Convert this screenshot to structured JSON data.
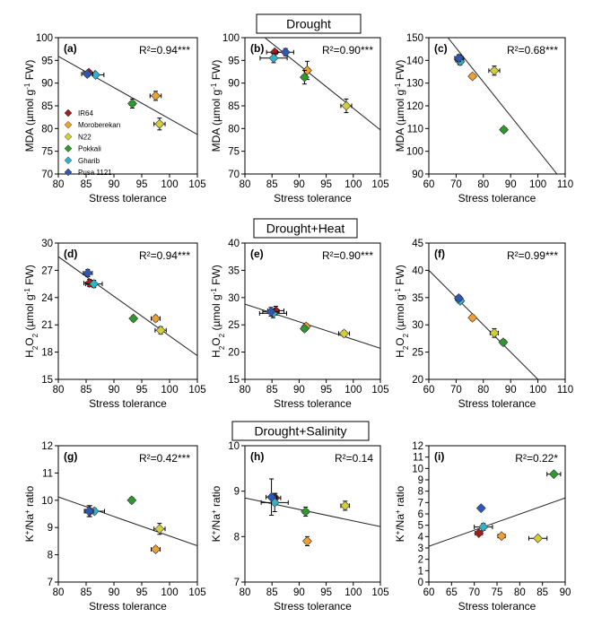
{
  "sections": [
    "Drought",
    "Drought+Heat",
    "Drought+Salinity"
  ],
  "legend": [
    {
      "label": "IR64",
      "color": "#a51c1c"
    },
    {
      "label": "Moroberekan",
      "color": "#f0a030"
    },
    {
      "label": "N22",
      "color": "#d2cf3a"
    },
    {
      "label": "Pokkali",
      "color": "#2e9a2e"
    },
    {
      "label": "Gharib",
      "color": "#33b1c9"
    },
    {
      "label": "Pusa 1121",
      "color": "#2f57b8"
    }
  ],
  "chart_data": [
    {
      "type": "scatter",
      "panel": "(a)",
      "xlabel": "Stress tolerance",
      "ylabel": "MDA (µmol g⁻¹ FW)",
      "r2_text": "R²=0.94***",
      "xlim": [
        80,
        105
      ],
      "xticks": [
        80,
        85,
        90,
        95,
        100,
        105
      ],
      "ylim": [
        70,
        100
      ],
      "yticks": [
        70,
        75,
        80,
        85,
        90,
        95,
        100
      ],
      "points": [
        {
          "name": "IR64",
          "x": 85.5,
          "y": 92.3,
          "xerr": 1.0,
          "yerr": 0.5
        },
        {
          "name": "Moroberekan",
          "x": 97.5,
          "y": 87.2,
          "xerr": 1.0,
          "yerr": 1.0
        },
        {
          "name": "N22",
          "x": 98.2,
          "y": 81.0,
          "xerr": 1.0,
          "yerr": 1.3
        },
        {
          "name": "Pokkali",
          "x": 93.3,
          "y": 85.5,
          "xerr": 0.5,
          "yerr": 1.0
        },
        {
          "name": "Gharib",
          "x": 86.7,
          "y": 91.8,
          "xerr": 1.5,
          "yerr": 0.5
        },
        {
          "name": "Pusa 1121",
          "x": 85.2,
          "y": 92.0,
          "xerr": 1.0,
          "yerr": 0.5
        }
      ],
      "fit": [
        [
          80,
          95.9
        ],
        [
          105,
          78.7
        ]
      ]
    },
    {
      "type": "scatter",
      "panel": "(d)",
      "xlabel": "Stress tolerance",
      "ylabel": "H₂O₂ (µmol g⁻¹ FW)",
      "r2_text": "R²=0.94***",
      "xlim": [
        80,
        105
      ],
      "xticks": [
        80,
        85,
        90,
        95,
        100,
        105
      ],
      "ylim": [
        15,
        30
      ],
      "yticks": [
        15,
        18,
        21,
        24,
        27,
        30
      ],
      "points": [
        {
          "name": "IR64",
          "x": 85.6,
          "y": 25.6,
          "xerr": 1.0,
          "yerr": 0.4
        },
        {
          "name": "Moroberekan",
          "x": 97.5,
          "y": 21.7,
          "xerr": 0.8,
          "yerr": 0.3
        },
        {
          "name": "N22",
          "x": 98.4,
          "y": 20.4,
          "xerr": 1.0,
          "yerr": 0.4
        },
        {
          "name": "Pokkali",
          "x": 93.5,
          "y": 21.7,
          "xerr": 0.3,
          "yerr": 0.3
        },
        {
          "name": "Gharib",
          "x": 86.4,
          "y": 25.5,
          "xerr": 1.5,
          "yerr": 0.4
        },
        {
          "name": "Pusa 1121",
          "x": 85.3,
          "y": 26.7,
          "xerr": 0.8,
          "yerr": 0.4
        }
      ],
      "fit": [
        [
          80,
          28.5
        ],
        [
          105,
          17.6
        ]
      ]
    },
    {
      "type": "scatter",
      "panel": "(g)",
      "xlabel": "Stress tolerance",
      "ylabel": "K⁺/Na⁺ ratio",
      "r2_text": "R²=0.42***",
      "xlim": [
        80,
        105
      ],
      "xticks": [
        80,
        85,
        90,
        95,
        100,
        105
      ],
      "ylim": [
        7,
        12
      ],
      "yticks": [
        7,
        8,
        9,
        10,
        11,
        12
      ],
      "points": [
        {
          "name": "IR64",
          "x": 85.7,
          "y": 9.6,
          "xerr": 0.8,
          "yerr": 0.2
        },
        {
          "name": "Moroberekan",
          "x": 97.5,
          "y": 8.2,
          "xerr": 0.8,
          "yerr": 0.1
        },
        {
          "name": "N22",
          "x": 98.2,
          "y": 8.95,
          "xerr": 1.0,
          "yerr": 0.2
        },
        {
          "name": "Pokkali",
          "x": 93.2,
          "y": 10.0,
          "xerr": 0.3,
          "yerr": 0.1
        },
        {
          "name": "Gharib",
          "x": 86.5,
          "y": 9.6,
          "xerr": 1.8,
          "yerr": 0.1
        },
        {
          "name": "Pusa 1121",
          "x": 85.5,
          "y": 9.6,
          "xerr": 0.8,
          "yerr": 0.2
        }
      ],
      "fit": [
        [
          80,
          10.12
        ],
        [
          105,
          8.33
        ]
      ]
    },
    {
      "type": "scatter",
      "panel": "(b)",
      "xlabel": "Stress tolerance",
      "ylabel": "MDA (µmol g⁻¹ FW)",
      "r2_text": "R²=0.90***",
      "xlim": [
        80,
        105
      ],
      "xticks": [
        80,
        85,
        90,
        95,
        100,
        105
      ],
      "ylim": [
        70,
        100
      ],
      "yticks": [
        70,
        75,
        80,
        85,
        90,
        95,
        100
      ],
      "points": [
        {
          "name": "IR64",
          "x": 85.5,
          "y": 96.8,
          "xerr": 1.5,
          "yerr": 0.5
        },
        {
          "name": "Moroberekan",
          "x": 91.5,
          "y": 92.8,
          "xerr": 0.5,
          "yerr": 2.0
        },
        {
          "name": "N22",
          "x": 98.7,
          "y": 85.0,
          "xerr": 1.0,
          "yerr": 1.5
        },
        {
          "name": "Pokkali",
          "x": 91.0,
          "y": 91.3,
          "xerr": 0.5,
          "yerr": 1.5
        },
        {
          "name": "Gharib",
          "x": 85.3,
          "y": 95.5,
          "xerr": 2.5,
          "yerr": 1.0
        },
        {
          "name": "Pusa 1121",
          "x": 87.5,
          "y": 96.8,
          "xerr": 1.5,
          "yerr": 0.8
        }
      ],
      "fit": [
        [
          80,
          103.5
        ],
        [
          105,
          79.7
        ]
      ]
    },
    {
      "type": "scatter",
      "panel": "(e)",
      "xlabel": "Stress tolerance",
      "ylabel": "H₂O₂ (µmol g⁻¹ FW)",
      "r2_text": "R²=0.90***",
      "xlim": [
        80,
        105
      ],
      "xticks": [
        80,
        85,
        90,
        95,
        100,
        105
      ],
      "ylim": [
        15,
        40
      ],
      "yticks": [
        15,
        20,
        25,
        30,
        35,
        40
      ],
      "points": [
        {
          "name": "IR64",
          "x": 85.7,
          "y": 27.6,
          "xerr": 1.5,
          "yerr": 0.8
        },
        {
          "name": "Moroberekan",
          "x": 91.3,
          "y": 24.7,
          "xerr": 0.5,
          "yerr": 0.5
        },
        {
          "name": "N22",
          "x": 98.3,
          "y": 23.4,
          "xerr": 1.0,
          "yerr": 0.5
        },
        {
          "name": "Pokkali",
          "x": 91.0,
          "y": 24.3,
          "xerr": 0.5,
          "yerr": 0.5
        },
        {
          "name": "Gharib",
          "x": 85.2,
          "y": 27.1,
          "xerr": 2.5,
          "yerr": 0.8
        },
        {
          "name": "Pusa 1121",
          "x": 84.8,
          "y": 27.4,
          "xerr": 1.5,
          "yerr": 0.8
        }
      ],
      "fit": [
        [
          80,
          28.8
        ],
        [
          105,
          20.7
        ]
      ]
    },
    {
      "type": "scatter",
      "panel": "(h)",
      "xlabel": "Stress tolerance",
      "ylabel": "K⁺/Na⁺ ratio",
      "r2_text": "R²=0.14",
      "xlim": [
        80,
        105
      ],
      "xticks": [
        80,
        85,
        90,
        95,
        100,
        105
      ],
      "ylim": [
        7,
        10
      ],
      "yticks": [
        7,
        8,
        9,
        10
      ],
      "points": [
        {
          "name": "IR64",
          "x": 85.6,
          "y": 8.85,
          "xerr": 1.0,
          "yerr": 0.1
        },
        {
          "name": "Moroberekan",
          "x": 91.5,
          "y": 7.9,
          "xerr": 0.5,
          "yerr": 0.1
        },
        {
          "name": "N22",
          "x": 98.5,
          "y": 8.68,
          "xerr": 0.8,
          "yerr": 0.1
        },
        {
          "name": "Pokkali",
          "x": 91.2,
          "y": 8.55,
          "xerr": 0.5,
          "yerr": 0.1
        },
        {
          "name": "Gharib",
          "x": 85.5,
          "y": 8.75,
          "xerr": 2.5,
          "yerr": 0.2
        },
        {
          "name": "Pusa 1121",
          "x": 84.9,
          "y": 8.87,
          "xerr": 1.0,
          "yerr": 0.4
        }
      ],
      "fit": [
        [
          80,
          8.85
        ],
        [
          105,
          8.22
        ]
      ]
    },
    {
      "type": "scatter",
      "panel": "(c)",
      "xlabel": "Stress tolerance",
      "ylabel": "MDA (µmol g⁻¹ FW)",
      "r2_text": "R²=0.68***",
      "xlim": [
        60,
        110
      ],
      "xticks": [
        60,
        70,
        80,
        90,
        100,
        110
      ],
      "ylim": [
        90,
        150
      ],
      "yticks": [
        90,
        100,
        110,
        120,
        130,
        140,
        150
      ],
      "points": [
        {
          "name": "IR64",
          "x": 71.3,
          "y": 140.2,
          "xerr": 1.5,
          "yerr": 2.0
        },
        {
          "name": "Moroberekan",
          "x": 76.0,
          "y": 133.0,
          "xerr": 1.0,
          "yerr": 1.0
        },
        {
          "name": "N22",
          "x": 84.0,
          "y": 135.5,
          "xerr": 2.0,
          "yerr": 2.0
        },
        {
          "name": "Pokkali",
          "x": 87.5,
          "y": 109.5,
          "xerr": 1.0,
          "yerr": 1.0
        },
        {
          "name": "Gharib",
          "x": 71.5,
          "y": 139.5,
          "xerr": 1.0,
          "yerr": 1.5
        },
        {
          "name": "Pusa 1121",
          "x": 71.0,
          "y": 141.0,
          "xerr": 1.5,
          "yerr": 1.5
        }
      ],
      "fit": [
        [
          67,
          150
        ],
        [
          107,
          90
        ]
      ]
    },
    {
      "type": "scatter",
      "panel": "(f)",
      "xlabel": "Stress tolerance",
      "ylabel": "H₂O₂ (µmol g⁻¹ FW)",
      "r2_text": "R²=0.99***",
      "xlim": [
        60,
        110
      ],
      "xticks": [
        60,
        70,
        80,
        90,
        100,
        110
      ],
      "ylim": [
        20,
        45
      ],
      "yticks": [
        20,
        25,
        30,
        35,
        40,
        45
      ],
      "points": [
        {
          "name": "IR64",
          "x": 71.2,
          "y": 34.6,
          "xerr": 1.0,
          "yerr": 0.5
        },
        {
          "name": "Moroberekan",
          "x": 76.0,
          "y": 31.3,
          "xerr": 0.8,
          "yerr": 0.5
        },
        {
          "name": "N22",
          "x": 84.0,
          "y": 28.5,
          "xerr": 1.5,
          "yerr": 0.8
        },
        {
          "name": "Pokkali",
          "x": 87.3,
          "y": 26.8,
          "xerr": 1.0,
          "yerr": 0.5
        },
        {
          "name": "Gharib",
          "x": 71.5,
          "y": 34.4,
          "xerr": 1.0,
          "yerr": 0.5
        },
        {
          "name": "Pusa 1121",
          "x": 71.0,
          "y": 34.9,
          "xerr": 1.0,
          "yerr": 0.5
        }
      ],
      "fit": [
        [
          60,
          40.0
        ],
        [
          100,
          20.0
        ]
      ]
    },
    {
      "type": "scatter",
      "panel": "(i)",
      "xlabel": "Stress tolerance",
      "ylabel": "K⁺/Na⁺ ratio",
      "r2_text": "R²=0.22*",
      "xlim": [
        60,
        90
      ],
      "xticks": [
        60,
        65,
        70,
        75,
        80,
        85,
        90
      ],
      "ylim": [
        0,
        12
      ],
      "yticks": [
        0,
        1,
        2,
        3,
        4,
        5,
        6,
        7,
        8,
        9,
        10,
        11,
        12
      ],
      "points": [
        {
          "name": "IR64",
          "x": 71.0,
          "y": 4.3,
          "xerr": 0.8,
          "yerr": 0.2
        },
        {
          "name": "Moroberekan",
          "x": 76.0,
          "y": 4.05,
          "xerr": 0.8,
          "yerr": 0.2
        },
        {
          "name": "N22",
          "x": 84.0,
          "y": 3.85,
          "xerr": 2.0,
          "yerr": 0.2
        },
        {
          "name": "Pokkali",
          "x": 87.5,
          "y": 9.5,
          "xerr": 1.5,
          "yerr": 0.2
        },
        {
          "name": "Gharib",
          "x": 72.0,
          "y": 4.85,
          "xerr": 2.0,
          "yerr": 0.3
        },
        {
          "name": "Pusa 1121",
          "x": 71.5,
          "y": 6.5,
          "xerr": 0.5,
          "yerr": 0.2
        }
      ],
      "fit": [
        [
          60,
          3.15
        ],
        [
          90,
          7.4
        ]
      ]
    }
  ]
}
